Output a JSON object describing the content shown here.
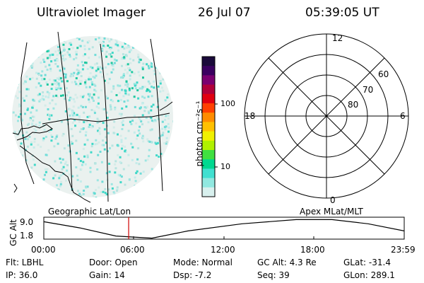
{
  "header": {
    "title": "Ultraviolet Imager",
    "date": "26 Jul 07",
    "time": "05:39:05 UT"
  },
  "colorbar": {
    "unit": "photon cm⁻²s⁻¹",
    "ticks": [
      "100",
      "10"
    ],
    "colors": [
      "#1a0a3a",
      "#3a0060",
      "#7a0070",
      "#b0003a",
      "#e00010",
      "#ff4000",
      "#ff8c00",
      "#ffc000",
      "#f0f000",
      "#b0f000",
      "#40e040",
      "#00d890",
      "#40e0d0",
      "#90e8e0",
      "#d8f0ee"
    ]
  },
  "polar": {
    "labels": {
      "top": "12",
      "bottom": "0",
      "left": "18",
      "right": "6"
    },
    "lat_labels": [
      "60",
      "70",
      "80"
    ]
  },
  "timeline": {
    "left_caption": "Geographic Lat/Lon",
    "right_caption": "Apex MLat/MLT",
    "axis_label": "GC Alt",
    "y_ticks": [
      "9.0",
      "1.8"
    ],
    "x_ticks": [
      "00:00",
      "06:00",
      "12:00",
      "18:00",
      "23:59"
    ],
    "current_fraction": 0.2354
  },
  "info": {
    "flt": "Flt: LBHL",
    "ip": "IP: 36.0",
    "door": "Door: Open",
    "gain": "Gain: 14",
    "mode": "Mode: Normal",
    "dsp": "Dsp:    -7.2",
    "gcalt": "GC Alt: 4.3 Re",
    "seq": "Seq: 39",
    "glat": "GLat: -31.4",
    "glon": "GLon: 289.1"
  }
}
